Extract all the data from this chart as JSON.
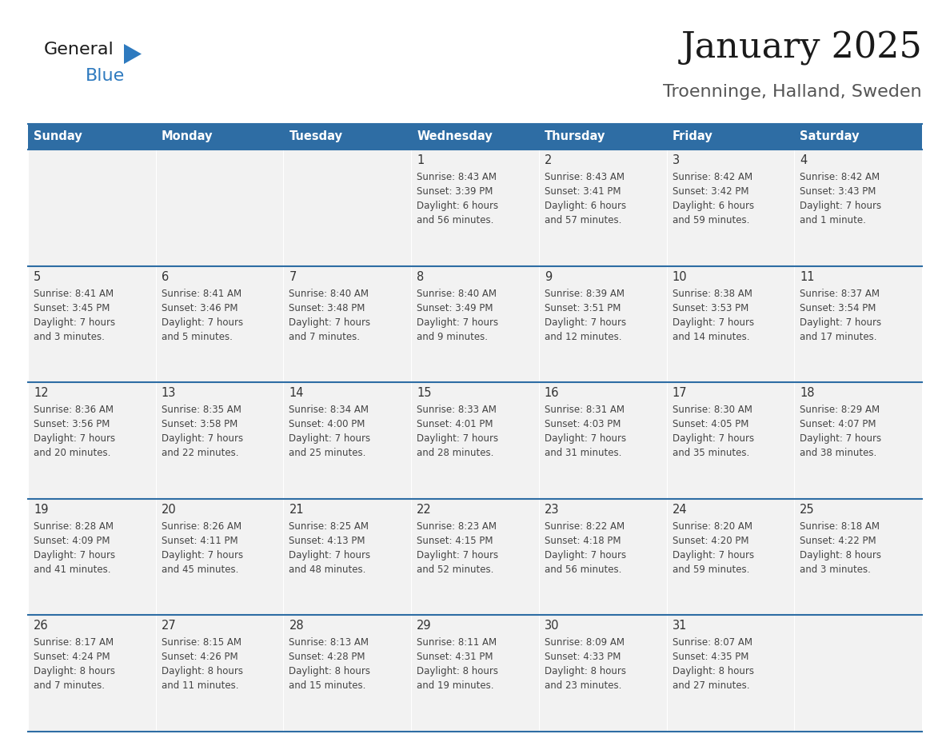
{
  "title": "January 2025",
  "subtitle": "Troenninge, Halland, Sweden",
  "days_of_week": [
    "Sunday",
    "Monday",
    "Tuesday",
    "Wednesday",
    "Thursday",
    "Friday",
    "Saturday"
  ],
  "header_bg": "#2E6DA4",
  "header_text": "#FFFFFF",
  "cell_bg": "#F2F2F2",
  "border_color": "#2E6DA4",
  "day_text_color": "#333333",
  "info_text_color": "#444444",
  "title_color": "#1a1a1a",
  "subtitle_color": "#555555",
  "logo_general_color": "#1a1a1a",
  "logo_blue_color": "#2E7ABF",
  "calendar_data": [
    {
      "day": null,
      "sunrise": null,
      "sunset": null,
      "daylight": null
    },
    {
      "day": null,
      "sunrise": null,
      "sunset": null,
      "daylight": null
    },
    {
      "day": null,
      "sunrise": null,
      "sunset": null,
      "daylight": null
    },
    {
      "day": 1,
      "sunrise": "8:43 AM",
      "sunset": "3:39 PM",
      "daylight": "6 hours\nand 56 minutes."
    },
    {
      "day": 2,
      "sunrise": "8:43 AM",
      "sunset": "3:41 PM",
      "daylight": "6 hours\nand 57 minutes."
    },
    {
      "day": 3,
      "sunrise": "8:42 AM",
      "sunset": "3:42 PM",
      "daylight": "6 hours\nand 59 minutes."
    },
    {
      "day": 4,
      "sunrise": "8:42 AM",
      "sunset": "3:43 PM",
      "daylight": "7 hours\nand 1 minute."
    },
    {
      "day": 5,
      "sunrise": "8:41 AM",
      "sunset": "3:45 PM",
      "daylight": "7 hours\nand 3 minutes."
    },
    {
      "day": 6,
      "sunrise": "8:41 AM",
      "sunset": "3:46 PM",
      "daylight": "7 hours\nand 5 minutes."
    },
    {
      "day": 7,
      "sunrise": "8:40 AM",
      "sunset": "3:48 PM",
      "daylight": "7 hours\nand 7 minutes."
    },
    {
      "day": 8,
      "sunrise": "8:40 AM",
      "sunset": "3:49 PM",
      "daylight": "7 hours\nand 9 minutes."
    },
    {
      "day": 9,
      "sunrise": "8:39 AM",
      "sunset": "3:51 PM",
      "daylight": "7 hours\nand 12 minutes."
    },
    {
      "day": 10,
      "sunrise": "8:38 AM",
      "sunset": "3:53 PM",
      "daylight": "7 hours\nand 14 minutes."
    },
    {
      "day": 11,
      "sunrise": "8:37 AM",
      "sunset": "3:54 PM",
      "daylight": "7 hours\nand 17 minutes."
    },
    {
      "day": 12,
      "sunrise": "8:36 AM",
      "sunset": "3:56 PM",
      "daylight": "7 hours\nand 20 minutes."
    },
    {
      "day": 13,
      "sunrise": "8:35 AM",
      "sunset": "3:58 PM",
      "daylight": "7 hours\nand 22 minutes."
    },
    {
      "day": 14,
      "sunrise": "8:34 AM",
      "sunset": "4:00 PM",
      "daylight": "7 hours\nand 25 minutes."
    },
    {
      "day": 15,
      "sunrise": "8:33 AM",
      "sunset": "4:01 PM",
      "daylight": "7 hours\nand 28 minutes."
    },
    {
      "day": 16,
      "sunrise": "8:31 AM",
      "sunset": "4:03 PM",
      "daylight": "7 hours\nand 31 minutes."
    },
    {
      "day": 17,
      "sunrise": "8:30 AM",
      "sunset": "4:05 PM",
      "daylight": "7 hours\nand 35 minutes."
    },
    {
      "day": 18,
      "sunrise": "8:29 AM",
      "sunset": "4:07 PM",
      "daylight": "7 hours\nand 38 minutes."
    },
    {
      "day": 19,
      "sunrise": "8:28 AM",
      "sunset": "4:09 PM",
      "daylight": "7 hours\nand 41 minutes."
    },
    {
      "day": 20,
      "sunrise": "8:26 AM",
      "sunset": "4:11 PM",
      "daylight": "7 hours\nand 45 minutes."
    },
    {
      "day": 21,
      "sunrise": "8:25 AM",
      "sunset": "4:13 PM",
      "daylight": "7 hours\nand 48 minutes."
    },
    {
      "day": 22,
      "sunrise": "8:23 AM",
      "sunset": "4:15 PM",
      "daylight": "7 hours\nand 52 minutes."
    },
    {
      "day": 23,
      "sunrise": "8:22 AM",
      "sunset": "4:18 PM",
      "daylight": "7 hours\nand 56 minutes."
    },
    {
      "day": 24,
      "sunrise": "8:20 AM",
      "sunset": "4:20 PM",
      "daylight": "7 hours\nand 59 minutes."
    },
    {
      "day": 25,
      "sunrise": "8:18 AM",
      "sunset": "4:22 PM",
      "daylight": "8 hours\nand 3 minutes."
    },
    {
      "day": 26,
      "sunrise": "8:17 AM",
      "sunset": "4:24 PM",
      "daylight": "8 hours\nand 7 minutes."
    },
    {
      "day": 27,
      "sunrise": "8:15 AM",
      "sunset": "4:26 PM",
      "daylight": "8 hours\nand 11 minutes."
    },
    {
      "day": 28,
      "sunrise": "8:13 AM",
      "sunset": "4:28 PM",
      "daylight": "8 hours\nand 15 minutes."
    },
    {
      "day": 29,
      "sunrise": "8:11 AM",
      "sunset": "4:31 PM",
      "daylight": "8 hours\nand 19 minutes."
    },
    {
      "day": 30,
      "sunrise": "8:09 AM",
      "sunset": "4:33 PM",
      "daylight": "8 hours\nand 23 minutes."
    },
    {
      "day": 31,
      "sunrise": "8:07 AM",
      "sunset": "4:35 PM",
      "daylight": "8 hours\nand 27 minutes."
    },
    {
      "day": null,
      "sunrise": null,
      "sunset": null,
      "daylight": null
    }
  ],
  "fig_width": 11.88,
  "fig_height": 9.18,
  "dpi": 100
}
